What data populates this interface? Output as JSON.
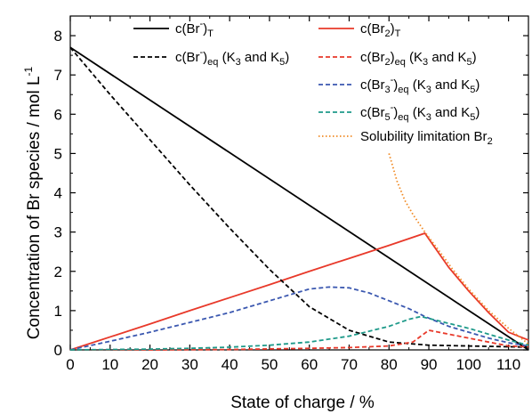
{
  "chart_data": {
    "type": "line",
    "xlabel": "State of charge / %",
    "ylabel": "Concentration of Br species / mol L",
    "ylabel_superscript": "-1",
    "xlim": [
      0,
      115
    ],
    "ylim": [
      0,
      8.5
    ],
    "xticks": [
      "0",
      "10",
      "20",
      "30",
      "40",
      "50",
      "60",
      "70",
      "80",
      "90",
      "100",
      "110"
    ],
    "yticks": [
      "0",
      "1",
      "2",
      "3",
      "4",
      "5",
      "6",
      "7",
      "8"
    ],
    "grid": false,
    "legend_position": "top-right",
    "series": [
      {
        "id": "br_total",
        "legend": {
          "base": "c(Br",
          "sup": "-",
          "close": ")",
          "sub": "T",
          "tail": ""
        },
        "color": "#000000",
        "dash": "solid",
        "points": [
          [
            0,
            7.7
          ],
          [
            115,
            0
          ]
        ]
      },
      {
        "id": "br2_total",
        "legend": {
          "base": "c(Br",
          "sub1": "2",
          "close": ")",
          "sub": "T",
          "tail": ""
        },
        "color": "#e8392a",
        "dash": "solid",
        "points": [
          [
            0,
            0
          ],
          [
            10,
            0.33
          ],
          [
            20,
            0.66
          ],
          [
            30,
            1.0
          ],
          [
            40,
            1.33
          ],
          [
            50,
            1.66
          ],
          [
            60,
            2.0
          ],
          [
            70,
            2.33
          ],
          [
            80,
            2.66
          ],
          [
            89,
            2.97
          ],
          [
            95,
            2.1
          ],
          [
            100,
            1.5
          ],
          [
            105,
            0.95
          ],
          [
            110,
            0.45
          ],
          [
            115,
            0.25
          ]
        ]
      },
      {
        "id": "br_eq",
        "legend": {
          "base": "c(Br",
          "sup": "-",
          "close": ")",
          "sub": "eq",
          "tail": " (K",
          "k1": "3",
          "mid": " and K",
          "k2": "5",
          "end": ")"
        },
        "color": "#000000",
        "dash": "dash",
        "points": [
          [
            0,
            7.7
          ],
          [
            10,
            6.5
          ],
          [
            20,
            5.35
          ],
          [
            30,
            4.2
          ],
          [
            40,
            3.1
          ],
          [
            50,
            2.05
          ],
          [
            60,
            1.1
          ],
          [
            70,
            0.5
          ],
          [
            80,
            0.2
          ],
          [
            90,
            0.12
          ],
          [
            100,
            0.1
          ],
          [
            110,
            0.08
          ],
          [
            115,
            0.07
          ]
        ]
      },
      {
        "id": "br2_eq",
        "legend": {
          "base": "c(Br",
          "sub1": "2",
          "close": ")",
          "sub": "eq",
          "tail": " (K",
          "k1": "3",
          "mid": " and K",
          "k2": "5",
          "end": ")"
        },
        "color": "#e8392a",
        "dash": "dash",
        "points": [
          [
            0,
            0
          ],
          [
            20,
            0
          ],
          [
            40,
            0.01
          ],
          [
            60,
            0.04
          ],
          [
            70,
            0.06
          ],
          [
            80,
            0.1
          ],
          [
            86,
            0.2
          ],
          [
            90,
            0.5
          ],
          [
            95,
            0.4
          ],
          [
            100,
            0.3
          ],
          [
            105,
            0.2
          ],
          [
            110,
            0.1
          ],
          [
            115,
            0.08
          ]
        ]
      },
      {
        "id": "br3_eq",
        "legend": {
          "base": "c(Br",
          "sub1": "3",
          "sup": "-",
          "close": ")",
          "sub": "eq",
          "tail": " (K",
          "k1": "3",
          "mid": " and K",
          "k2": "5",
          "end": ")"
        },
        "color": "#3b58b0",
        "dash": "dash",
        "points": [
          [
            0,
            0
          ],
          [
            10,
            0.22
          ],
          [
            20,
            0.45
          ],
          [
            30,
            0.7
          ],
          [
            40,
            0.95
          ],
          [
            50,
            1.25
          ],
          [
            60,
            1.55
          ],
          [
            65,
            1.6
          ],
          [
            70,
            1.58
          ],
          [
            75,
            1.45
          ],
          [
            80,
            1.25
          ],
          [
            85,
            1.05
          ],
          [
            89,
            0.85
          ],
          [
            95,
            0.6
          ],
          [
            100,
            0.45
          ],
          [
            105,
            0.3
          ],
          [
            110,
            0.18
          ],
          [
            115,
            0.1
          ]
        ]
      },
      {
        "id": "br5_eq",
        "legend": {
          "base": "c(Br",
          "sub1": "5",
          "sup": "-",
          "close": ")",
          "sub": "eq",
          "tail": " (K",
          "k1": "3",
          "mid": " and K",
          "k2": "5",
          "end": ")"
        },
        "color": "#1e9a8a",
        "dash": "dash",
        "points": [
          [
            0,
            0
          ],
          [
            10,
            0.01
          ],
          [
            20,
            0.02
          ],
          [
            30,
            0.04
          ],
          [
            40,
            0.07
          ],
          [
            50,
            0.12
          ],
          [
            60,
            0.2
          ],
          [
            70,
            0.35
          ],
          [
            80,
            0.6
          ],
          [
            85,
            0.78
          ],
          [
            88,
            0.85
          ],
          [
            92,
            0.75
          ],
          [
            100,
            0.55
          ],
          [
            105,
            0.4
          ],
          [
            110,
            0.25
          ],
          [
            115,
            0.12
          ]
        ]
      },
      {
        "id": "br2_solubility",
        "legend": {
          "base": "Solubility limitation Br",
          "sub1": "2",
          "tail": ""
        },
        "color": "#f08a24",
        "dash": "dot",
        "points": [
          [
            80,
            5.0
          ],
          [
            82,
            4.3
          ],
          [
            84,
            3.8
          ],
          [
            86,
            3.45
          ],
          [
            88,
            3.15
          ],
          [
            89,
            3.0
          ],
          [
            92,
            2.6
          ],
          [
            96,
            2.05
          ],
          [
            100,
            1.55
          ],
          [
            105,
            1.0
          ],
          [
            110,
            0.55
          ],
          [
            115,
            0.15
          ]
        ]
      }
    ]
  }
}
